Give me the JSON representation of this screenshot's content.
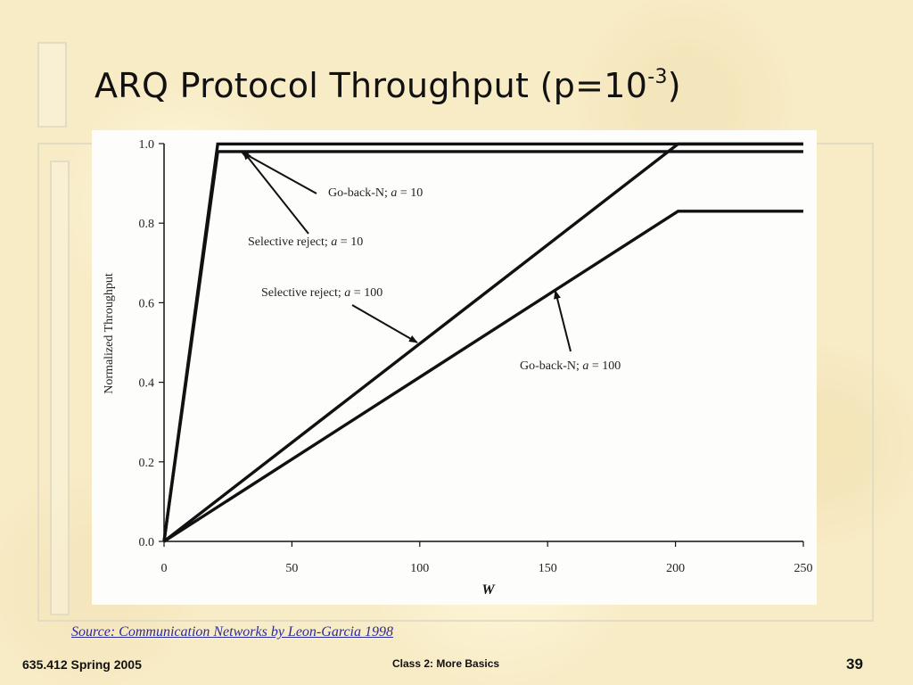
{
  "slide": {
    "title_main": "ARQ Protocol Throughput (p=10",
    "title_exp": "-3",
    "title_close": ")",
    "source": "Source: Communication Networks by Leon-Garcia 1998",
    "footer_left": "635.412 Spring 2005",
    "footer_center": "Class 2:  More Basics",
    "page_number": "39"
  },
  "chart_data": {
    "type": "line",
    "xlabel": "W",
    "ylabel": "Normalized Throughput",
    "xlim": [
      0,
      250
    ],
    "ylim": [
      0,
      1.0
    ],
    "x_ticks": [
      "0",
      "50",
      "100",
      "150",
      "200",
      "250"
    ],
    "y_ticks": [
      "0.0",
      "0.2",
      "0.4",
      "0.6",
      "0.8",
      "1.0"
    ],
    "grid": false,
    "series": [
      {
        "name": "Selective reject; a = 10",
        "x": [
          0,
          21,
          250
        ],
        "y": [
          0,
          0.999,
          0.999
        ]
      },
      {
        "name": "Go-back-N; a = 10",
        "x": [
          0,
          21,
          250
        ],
        "y": [
          0,
          0.98,
          0.98
        ]
      },
      {
        "name": "Selective reject; a = 100",
        "x": [
          0,
          201,
          250
        ],
        "y": [
          0,
          0.999,
          0.999
        ]
      },
      {
        "name": "Go-back-N; a = 100",
        "x": [
          0,
          201,
          250
        ],
        "y": [
          0,
          0.83,
          0.83
        ]
      }
    ],
    "annotations": [
      {
        "text_pre": "Go-back-N; ",
        "var": "a",
        "text_post": " = 10",
        "series": "Go-back-N; a = 10",
        "x": 30,
        "y": 0.98
      },
      {
        "text_pre": "Selective reject; ",
        "var": "a",
        "text_post": " = 10",
        "series": "Selective reject; a = 10",
        "x": 31,
        "y": 0.98
      },
      {
        "text_pre": "Selective reject; ",
        "var": "a",
        "text_post": " = 100",
        "series": "Selective reject; a = 100",
        "x": 99,
        "y": 0.5
      },
      {
        "text_pre": "Go-back-N; ",
        "var": "a",
        "text_post": " = 100",
        "series": "Go-back-N; a = 100",
        "x": 153,
        "y": 0.63
      }
    ]
  }
}
